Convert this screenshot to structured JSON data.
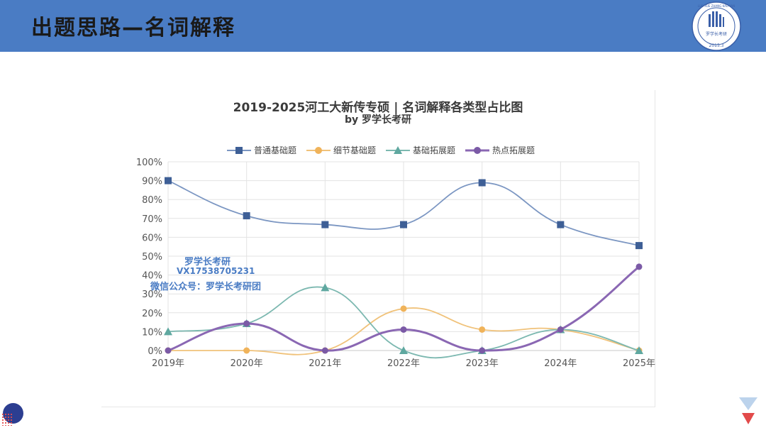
{
  "header": {
    "title": "出题思路—名词解释"
  },
  "logo": {
    "top_text": "LUO XUE ZHANG KAO YAN",
    "center_text": "罗学长考研",
    "date": "2015.3"
  },
  "chart_data": {
    "type": "line",
    "title": "2019-2025河工大新传专硕 | 名词解释各类型占比图",
    "subtitle": "by 罗学长考研",
    "categories": [
      "2019年",
      "2020年",
      "2021年",
      "2022年",
      "2023年",
      "2024年",
      "2025年"
    ],
    "y_ticks": [
      "100%",
      "90%",
      "80%",
      "70%",
      "60%",
      "50%",
      "40%",
      "30%",
      "20%",
      "10%",
      "0%"
    ],
    "ylim": [
      0,
      100
    ],
    "grid": true,
    "legend_position": "top",
    "series": [
      {
        "name": "普通基础题",
        "color": "#3e5f96",
        "line_color": "#7b96c2",
        "marker": "square",
        "values": [
          90,
          71.4,
          66.7,
          66.7,
          88.9,
          66.7,
          55.6
        ]
      },
      {
        "name": "细节基础题",
        "color": "#f0b35a",
        "line_color": "#f0c27a",
        "marker": "circle",
        "values": [
          0,
          0,
          0,
          22.2,
          11.1,
          11.1,
          0
        ]
      },
      {
        "name": "基础拓展题",
        "color": "#5fa8a0",
        "line_color": "#7cb8b0",
        "marker": "triangle",
        "values": [
          10,
          14.3,
          33.3,
          0,
          0,
          11.1,
          0
        ]
      },
      {
        "name": "热点拓展题",
        "color": "#7b5aa6",
        "line_color": "#8a67b3",
        "marker": "circle",
        "values": [
          0,
          14.3,
          0,
          11.1,
          0,
          11.1,
          44.4
        ]
      }
    ]
  },
  "watermark": {
    "line1": "罗学长考研",
    "line2": "VX17538705231",
    "line3": "微信公众号：罗学长考研团"
  }
}
